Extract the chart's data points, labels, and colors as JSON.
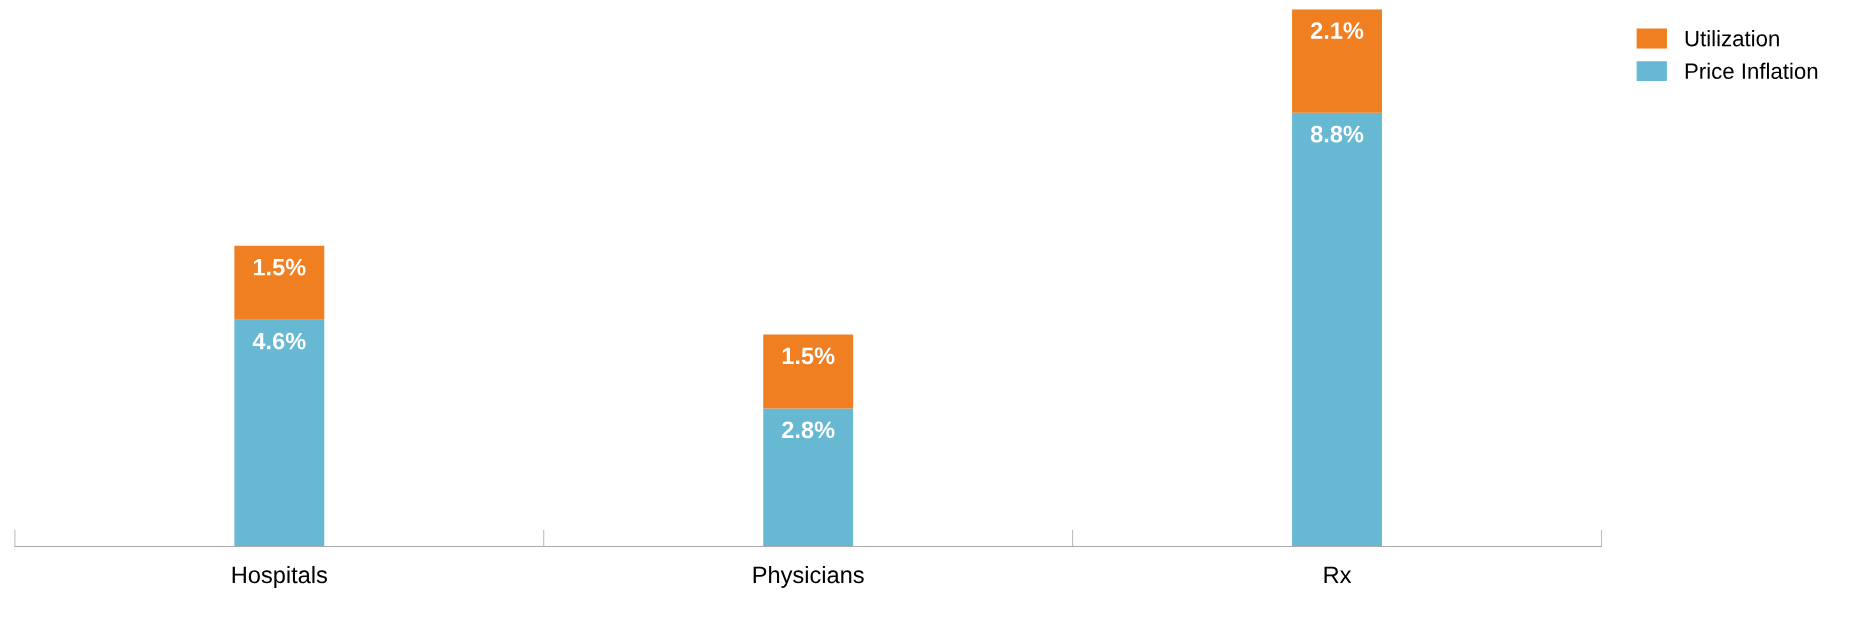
{
  "chart_data": {
    "type": "bar",
    "stacked": true,
    "categories": [
      "Hospitals",
      "Physicians",
      "Rx"
    ],
    "series": [
      {
        "name": "Price Inflation",
        "color": "#67b9d3",
        "values": [
          4.6,
          2.8,
          8.8
        ],
        "value_labels": [
          "4.6%",
          "2.8%",
          "8.8%"
        ]
      },
      {
        "name": "Utilization",
        "color": "#f07f22",
        "values": [
          1.5,
          1.5,
          2.1
        ],
        "value_labels": [
          "1.5%",
          "1.5%",
          "2.1%"
        ]
      }
    ],
    "legend": "top right",
    "grid": false,
    "tick_labels": "x"
  }
}
